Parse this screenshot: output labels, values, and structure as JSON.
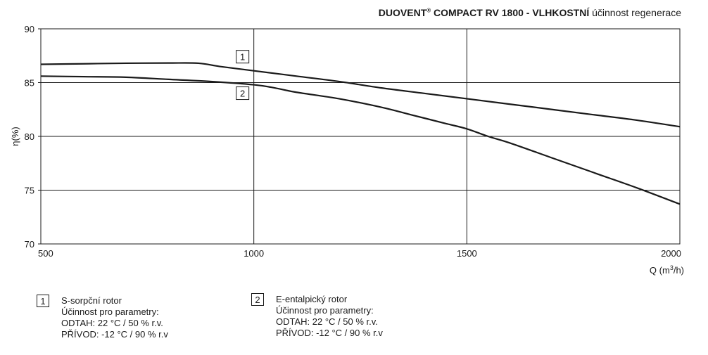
{
  "chart_data": {
    "type": "line",
    "title": {
      "brand": "DUOVENT",
      "registered": "®",
      "model": " COMPACT RV 1800 - VLHKOSTNÍ",
      "rest": " účinnost regenerace"
    },
    "xlabel": "Q (m³/h)",
    "ylabel": "η(%)",
    "xlim": [
      500,
      2000
    ],
    "ylim": [
      70,
      90
    ],
    "x_ticks": [
      500,
      1000,
      1500,
      2000
    ],
    "y_ticks": [
      70,
      75,
      80,
      85,
      90
    ],
    "grid": true,
    "series": [
      {
        "label": "1",
        "points": [
          [
            500,
            86.7
          ],
          [
            600,
            86.75
          ],
          [
            700,
            86.8
          ],
          [
            800,
            86.82
          ],
          [
            870,
            86.8
          ],
          [
            920,
            86.5
          ],
          [
            1000,
            86.1
          ],
          [
            1100,
            85.6
          ],
          [
            1200,
            85.1
          ],
          [
            1300,
            84.5
          ],
          [
            1400,
            84.0
          ],
          [
            1500,
            83.5
          ],
          [
            1600,
            83.0
          ],
          [
            1700,
            82.5
          ],
          [
            1800,
            82.0
          ],
          [
            1900,
            81.5
          ],
          [
            2000,
            80.9
          ]
        ]
      },
      {
        "label": "2",
        "points": [
          [
            500,
            85.6
          ],
          [
            600,
            85.55
          ],
          [
            700,
            85.5
          ],
          [
            800,
            85.3
          ],
          [
            900,
            85.1
          ],
          [
            1000,
            84.8
          ],
          [
            1050,
            84.5
          ],
          [
            1100,
            84.1
          ],
          [
            1200,
            83.5
          ],
          [
            1300,
            82.7
          ],
          [
            1370,
            82.0
          ],
          [
            1450,
            81.2
          ],
          [
            1500,
            80.7
          ],
          [
            1550,
            80.0
          ],
          [
            1600,
            79.4
          ],
          [
            1700,
            78.0
          ],
          [
            1800,
            76.6
          ],
          [
            1900,
            75.2
          ],
          [
            2000,
            73.7
          ]
        ]
      }
    ],
    "legend": [
      {
        "num": "1",
        "name": "S-sorpční rotor",
        "line1": "Účinnost pro parametry:",
        "line2": "ODTAH: 22 °C / 50 % r.v.",
        "line3": "PŘÍVOD: -12 °C / 90 % r.v"
      },
      {
        "num": "2",
        "name": "E-entalpický rotor",
        "line1": "Účinnost pro parametry:",
        "line2": "ODTAH: 22 °C / 50 % r.v.",
        "line3": "PŘÍVOD: -12 °C / 90 % r.v"
      }
    ],
    "curve_markers": [
      {
        "num": "1",
        "x": 1000,
        "y": 86.1,
        "position": "above"
      },
      {
        "num": "2",
        "x": 1000,
        "y": 84.8,
        "position": "below"
      }
    ]
  }
}
